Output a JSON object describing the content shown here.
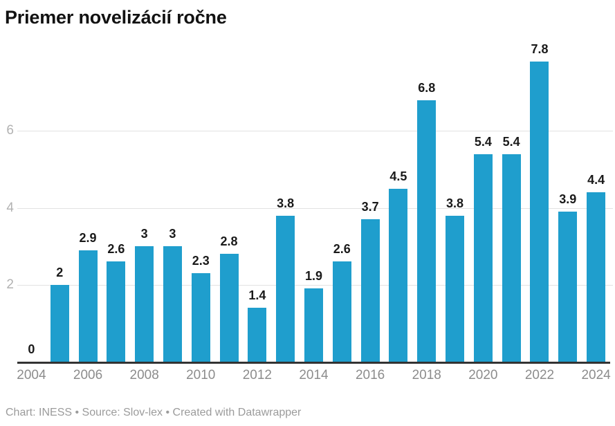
{
  "title": "Priemer novelizácií ročne",
  "footer": "Chart: INESS • Source: Slov-lex • Created with Datawrapper",
  "colors": {
    "bar": "#1f9ecd",
    "grid": "#e2e2e2",
    "axis": "#333333",
    "value_label": "#1a1a1a",
    "x_tick_label": "#8c8c8c",
    "y_tick_label": "#b2b2b2",
    "title": "#121212",
    "footer": "#9b9b9b",
    "background": "#ffffff"
  },
  "chart_data": {
    "type": "bar",
    "title": "Priemer novelizácií ročne",
    "categories": [
      "2004",
      "2005",
      "2006",
      "2007",
      "2008",
      "2009",
      "2010",
      "2011",
      "2012",
      "2013",
      "2014",
      "2015",
      "2016",
      "2017",
      "2018",
      "2019",
      "2020",
      "2021",
      "2022",
      "2023",
      "2024"
    ],
    "values": [
      0,
      2,
      2.9,
      2.6,
      3,
      3,
      2.3,
      2.8,
      1.4,
      3.8,
      1.9,
      2.6,
      3.7,
      4.5,
      6.8,
      3.8,
      5.4,
      5.4,
      7.8,
      3.9,
      4.4
    ],
    "data_labels": [
      "0",
      "2",
      "2.9",
      "2.6",
      "3",
      "3",
      "2.3",
      "2.8",
      "1.4",
      "3.8",
      "1.9",
      "2.6",
      "3.7",
      "4.5",
      "6.8",
      "3.8",
      "5.4",
      "5.4",
      "7.8",
      "3.9",
      "4.4"
    ],
    "xlabel": "",
    "ylabel": "",
    "ylim": [
      0,
      8
    ],
    "yticks": [
      2,
      4,
      6
    ],
    "x_tick_labels": [
      "2004",
      "2006",
      "2008",
      "2010",
      "2012",
      "2014",
      "2016",
      "2018",
      "2020",
      "2022",
      "2024"
    ],
    "grid": "horizontal-only",
    "legend": "none",
    "bar_color": "#1f9ecd"
  }
}
